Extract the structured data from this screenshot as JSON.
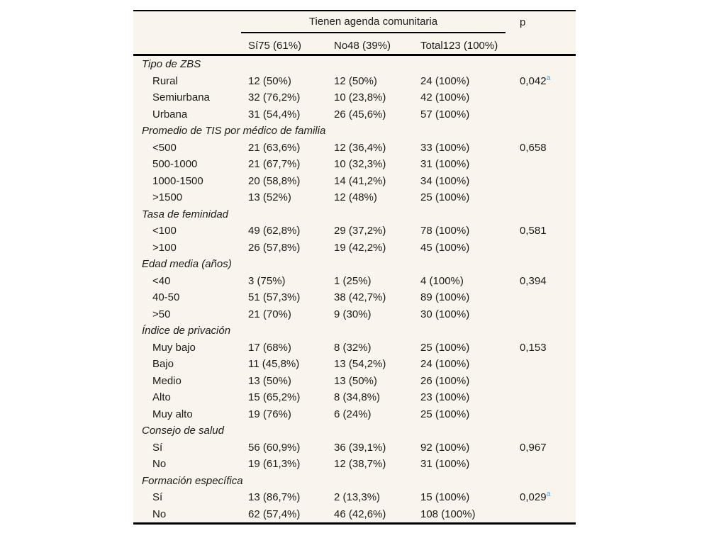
{
  "colors": {
    "background": "#f9f5ec",
    "text": "#1b1b1b",
    "rule": "#000000",
    "footnote_marker": "#56a7d9"
  },
  "table": {
    "header": {
      "group_label": "Tienen agenda comunitaria",
      "p_label": "p",
      "columns": [
        "Sí75 (61%)",
        "No48 (39%)",
        "Total123 (100%)"
      ]
    },
    "sections": [
      {
        "label": "Tipo de ZBS",
        "rows": [
          {
            "label": "Rural",
            "si": "12 (50%)",
            "no": "12 (50%)",
            "total": "24 (100%)",
            "p": "0,042",
            "p_sup": "a"
          },
          {
            "label": "Semiurbana",
            "si": "32 (76,2%)",
            "no": "10 (23,8%)",
            "total": "42 (100%)",
            "p": "",
            "p_sup": ""
          },
          {
            "label": "Urbana",
            "si": "31 (54,4%)",
            "no": "26 (45,6%)",
            "total": "57 (100%)",
            "p": "",
            "p_sup": ""
          }
        ]
      },
      {
        "label": "Promedio de TIS por médico de familia",
        "rows": [
          {
            "label": "<500",
            "si": "21 (63,6%)",
            "no": "12 (36,4%)",
            "total": "33 (100%)",
            "p": "0,658",
            "p_sup": ""
          },
          {
            "label": "500-1000",
            "si": "21 (67,7%)",
            "no": "10 (32,3%)",
            "total": "31 (100%)",
            "p": "",
            "p_sup": ""
          },
          {
            "label": "1000-1500",
            "si": "20 (58,8%)",
            "no": "14 (41,2%)",
            "total": "34 (100%)",
            "p": "",
            "p_sup": ""
          },
          {
            "label": ">1500",
            "si": "13 (52%)",
            "no": "12 (48%)",
            "total": "25 (100%)",
            "p": "",
            "p_sup": ""
          }
        ]
      },
      {
        "label": "Tasa de feminidad",
        "rows": [
          {
            "label": "<100",
            "si": "49 (62,8%)",
            "no": "29 (37,2%)",
            "total": "78 (100%)",
            "p": "0,581",
            "p_sup": ""
          },
          {
            "label": ">100",
            "si": "26 (57,8%)",
            "no": "19 (42,2%)",
            "total": "45 (100%)",
            "p": "",
            "p_sup": ""
          }
        ]
      },
      {
        "label": "Edad media (años)",
        "rows": [
          {
            "label": "<40",
            "si": "3 (75%)",
            "no": "1 (25%)",
            "total": "4 (100%)",
            "p": "0,394",
            "p_sup": ""
          },
          {
            "label": "40-50",
            "si": "51 (57,3%)",
            "no": "38 (42,7%)",
            "total": "89 (100%)",
            "p": "",
            "p_sup": ""
          },
          {
            "label": ">50",
            "si": "21 (70%)",
            "no": "9 (30%)",
            "total": "30 (100%)",
            "p": "",
            "p_sup": ""
          }
        ]
      },
      {
        "label": "Índice de privación",
        "rows": [
          {
            "label": "Muy bajo",
            "si": "17 (68%)",
            "no": "8 (32%)",
            "total": "25 (100%)",
            "p": "0,153",
            "p_sup": ""
          },
          {
            "label": "Bajo",
            "si": "11 (45,8%)",
            "no": "13 (54,2%)",
            "total": "24 (100%)",
            "p": "",
            "p_sup": ""
          },
          {
            "label": "Medio",
            "si": "13 (50%)",
            "no": "13 (50%)",
            "total": "26 (100%)",
            "p": "",
            "p_sup": ""
          },
          {
            "label": "Alto",
            "si": "15 (65,2%)",
            "no": "8 (34,8%)",
            "total": "23 (100%)",
            "p": "",
            "p_sup": ""
          },
          {
            "label": "Muy alto",
            "si": "19 (76%)",
            "no": "6 (24%)",
            "total": "25 (100%)",
            "p": "",
            "p_sup": ""
          }
        ]
      },
      {
        "label": "Consejo de salud",
        "rows": [
          {
            "label": "Sí",
            "si": "56 (60,9%)",
            "no": "36 (39,1%)",
            "total": "92 (100%)",
            "p": "0,967",
            "p_sup": ""
          },
          {
            "label": "No",
            "si": "19 (61,3%)",
            "no": "12 (38,7%)",
            "total": "31 (100%)",
            "p": "",
            "p_sup": ""
          }
        ]
      },
      {
        "label": "Formación específica",
        "rows": [
          {
            "label": "Sí",
            "si": "13 (86,7%)",
            "no": "2 (13,3%)",
            "total": "15 (100%)",
            "p": "0,029",
            "p_sup": "a"
          },
          {
            "label": "No",
            "si": "62 (57,4%)",
            "no": "46 (42,6%)",
            "total": "108 (100%)",
            "p": "",
            "p_sup": ""
          }
        ]
      }
    ]
  }
}
